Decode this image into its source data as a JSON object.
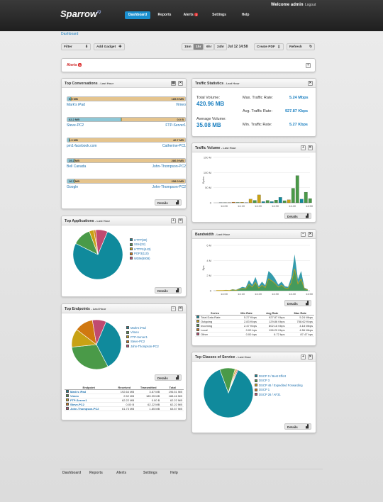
{
  "header": {
    "logo": "Sparrow",
    "logo_sup": "IQ",
    "nav": [
      "Dashboard",
      "Reports",
      "Alerts",
      "Settings",
      "Help"
    ],
    "alerts_badge": "1",
    "welcome": "Welcome admin",
    "logout": "Logout"
  },
  "breadcrumb": "Dashboard",
  "toolbar": {
    "filter": "Filter",
    "add_gadget": "Add Gadget",
    "ranges": [
      "15m",
      "1hr",
      "6hr",
      "24hr"
    ],
    "selected_range": "1hr",
    "datetime": "Jul 12 14:58",
    "create_pdf": "Create PDF",
    "refresh": "Refresh"
  },
  "alerts_bar": {
    "title": "Alerts",
    "badge": "1"
  },
  "top_conversations": {
    "title": "Top Conversations",
    "sub": "- Last Hour",
    "details": "Details",
    "rows": [
      {
        "left_val": "5.5 MB",
        "right_val": "185.5 MB",
        "left_name": "Mark's iPad",
        "right_name": "Vimeo",
        "left_frac": 0.03
      },
      {
        "left_val": "62.2 MB",
        "right_val": "0.0 B",
        "left_name": "Steve-PC2",
        "right_name": "FTP-Server1",
        "left_frac": 0.46
      },
      {
        "left_val": "1.3 MB",
        "right_val": "46.7 MB",
        "left_name": "pm1-facebook.com",
        "right_name": "Catherine-PC1",
        "left_frac": 0.01
      },
      {
        "left_val": "19.2 MB",
        "right_val": "286.9 MB",
        "left_name": "Bell Canada",
        "right_name": "John-Thompson-PC2",
        "left_frac": 0.06
      },
      {
        "left_val": "16.7 MB",
        "right_val": "258.0 MB",
        "left_name": "Google",
        "right_name": "John-Thompson-PC2",
        "left_frac": 0.06
      }
    ]
  },
  "top_applications": {
    "title": "Top Applications",
    "sub": "- Last Hour",
    "details": "Details",
    "legend": [
      {
        "name": "HTTP(80)",
        "color": "#108a9c",
        "value": 76
      },
      {
        "name": "SSH(22)",
        "color": "#4a9a48",
        "value": 12
      },
      {
        "name": "HTTPS(443)",
        "color": "#c8a214",
        "value": 3
      },
      {
        "name": "POP3(110)",
        "color": "#d07810",
        "value": 1.2
      },
      {
        "name": "WDM(8008)",
        "color": "#c04a70",
        "value": 7.8
      }
    ]
  },
  "top_endpoints": {
    "title": "Top Endpoints",
    "sub": "- Last Hour",
    "details": "Details",
    "legend": [
      {
        "name": "Mark's iPad",
        "color": "#108a9c",
        "value": 36
      },
      {
        "name": "Vimeo",
        "color": "#4a9a48",
        "value": 31
      },
      {
        "name": "FTP-Server1",
        "color": "#c8a214",
        "value": 12
      },
      {
        "name": "Steve-PC2",
        "color": "#d07810",
        "value": 12
      },
      {
        "name": "John-Thompson-PC2",
        "color": "#c04a70",
        "value": 9
      }
    ],
    "columns": [
      "Endpoint",
      "Received",
      "Transmitted",
      "Total"
    ],
    "rows": [
      [
        "Mark's iPad",
        "192.64 MB",
        "3.87 MB",
        "196.51 MB"
      ],
      [
        "Vimeo",
        "2.52 MB",
        "185.95 MB",
        "188.46 MB"
      ],
      [
        "FTP-Server1",
        "62.22 MB",
        "0.00 B",
        "62.22 MB"
      ],
      [
        "Steve-PC2",
        "0.00 B",
        "62.22 MB",
        "62.22 MB"
      ],
      [
        "John-Thompson-PC2",
        "61.73 MB",
        "1.85 MB",
        "63.57 MB"
      ]
    ]
  },
  "traffic_stats": {
    "title": "Traffic Statistics",
    "sub": "- Last Hour",
    "total_label": "Total Volume:",
    "total": "420.96 MB",
    "avg_label": "Average Volume:",
    "avg": "35.08 MB",
    "max_label": "Max. Traffic Rate:",
    "max": "5.24 Mbps",
    "avgr_label": "Avg. Traffic Rate:",
    "avgr": "927.87 Kbps",
    "min_label": "Min. Traffic Rate:",
    "min": "5.27 Kbps"
  },
  "traffic_volume": {
    "title": "Traffic Volume",
    "sub": "- Last Hour",
    "details": "Details",
    "ylabel": "Bytes",
    "yticks": [
      "150 M",
      "100 M",
      "50 M",
      "0"
    ],
    "xticks": [
      "14:00",
      "14:10",
      "14:20",
      "14:30",
      "14:40",
      "14:50"
    ]
  },
  "bandwidth": {
    "title": "Bandwidth",
    "sub": "- Last Hour",
    "details": "Details",
    "ylabel": "Bps",
    "yticks": [
      "6 M",
      "4 M",
      "2 M",
      "0"
    ],
    "xticks": [
      "14:00",
      "14:10",
      "14:20",
      "14:30",
      "14:40",
      "14:50"
    ],
    "columns": [
      "Series",
      "Min Rate",
      "Avg Rate",
      "Max Rate"
    ],
    "rows": [
      {
        "c": "#108a9c",
        "v": [
          "Total Data Rate",
          "5.27 Kbps",
          "927.87 Kbps",
          "5.24 Mbps"
        ]
      },
      {
        "c": "#c8a214",
        "v": [
          "Outgoing",
          "2.83 Kbps",
          "129.86 Kbps",
          "758.62 Kbps"
        ]
      },
      {
        "c": "#4a9a48",
        "v": [
          "Incoming",
          "2.47 Kbps",
          "802.16 Kbps",
          "4.18 Mbps"
        ]
      },
      {
        "c": "#d07810",
        "v": [
          "Local",
          "0.00 bps",
          "196.20 Kbps",
          "4.56 Mbps"
        ]
      },
      {
        "c": "#c04a70",
        "v": [
          "Other",
          "0.00 bps",
          "6.72 bps",
          "87.47 bps"
        ]
      }
    ]
  },
  "top_cos": {
    "title": "Top Classes of Service",
    "sub": "- Last Hour",
    "details": "Details",
    "legend": [
      {
        "name": "DSCP 0 / Best Effort",
        "color": "#108a9c",
        "value": 88
      },
      {
        "name": "DSCP 3",
        "color": "#4a9a48",
        "value": 10
      },
      {
        "name": "DSCP 46 / Expedited Forwarding",
        "color": "#c8a214",
        "value": 0.8
      },
      {
        "name": "DSCP 1",
        "color": "#d07810",
        "value": 0.6
      },
      {
        "name": "DSCP 26 / AF31",
        "color": "#c04a70",
        "value": 0.6
      }
    ]
  },
  "footer": [
    "Dashboard",
    "Reports",
    "Alerts",
    "Settings",
    "Help"
  ]
}
